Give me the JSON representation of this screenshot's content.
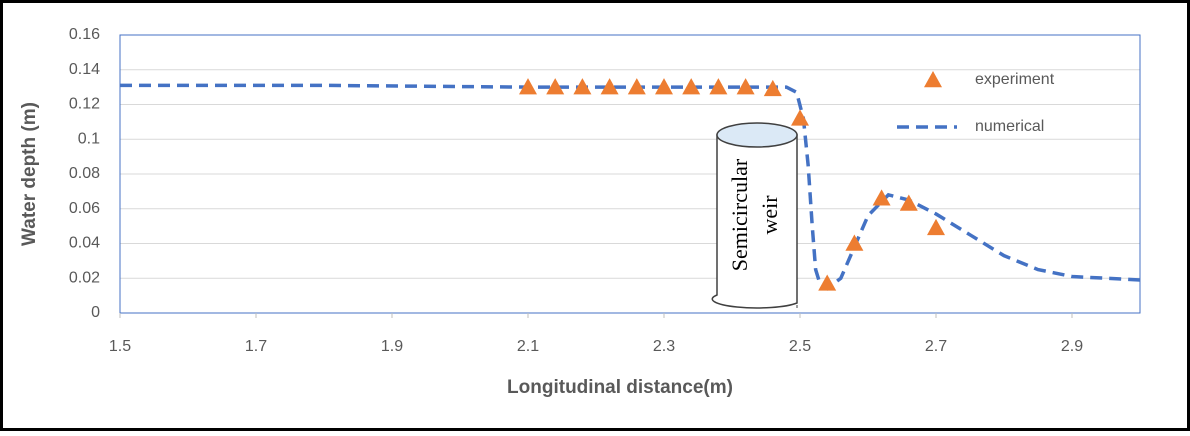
{
  "chart_data": {
    "type": "scatter-line",
    "xlabel": "Longitudinal distance(m)",
    "ylabel": "Water depth (m)",
    "xlim": [
      1.5,
      3.0
    ],
    "xticks": [
      1.5,
      1.7,
      1.9,
      2.1,
      2.3,
      2.5,
      2.7,
      2.9
    ],
    "ylim": [
      0,
      0.16
    ],
    "yticks": [
      0,
      0.02,
      0.04,
      0.06,
      0.08,
      0.1,
      0.12,
      0.14,
      0.16
    ],
    "grid": true,
    "legend_position": "top-right",
    "annotation": [
      "Semicircular",
      "weir"
    ],
    "series": [
      {
        "name": "experiment",
        "color": "#ed7d31",
        "marker": "triangle",
        "x": [
          2.1,
          2.14,
          2.18,
          2.22,
          2.26,
          2.3,
          2.34,
          2.38,
          2.42,
          2.46,
          2.5,
          2.54,
          2.58,
          2.62,
          2.66,
          2.7
        ],
        "values": [
          0.13,
          0.13,
          0.13,
          0.13,
          0.13,
          0.13,
          0.13,
          0.13,
          0.13,
          0.129,
          0.112,
          0.017,
          0.04,
          0.066,
          0.063,
          0.049
        ]
      },
      {
        "name": "numerical",
        "color": "#4472c4",
        "marker": "dashed-line",
        "x": [
          1.5,
          1.8,
          2.1,
          2.4,
          2.48,
          2.495,
          2.505,
          2.512,
          2.518,
          2.523,
          2.53,
          2.54,
          2.56,
          2.58,
          2.6,
          2.63,
          2.66,
          2.7,
          2.75,
          2.8,
          2.85,
          2.9,
          2.95,
          3.0
        ],
        "values": [
          0.131,
          0.131,
          0.13,
          0.13,
          0.13,
          0.127,
          0.112,
          0.085,
          0.05,
          0.025,
          0.016,
          0.014,
          0.02,
          0.038,
          0.056,
          0.068,
          0.065,
          0.057,
          0.045,
          0.033,
          0.025,
          0.021,
          0.02,
          0.019
        ]
      }
    ]
  }
}
